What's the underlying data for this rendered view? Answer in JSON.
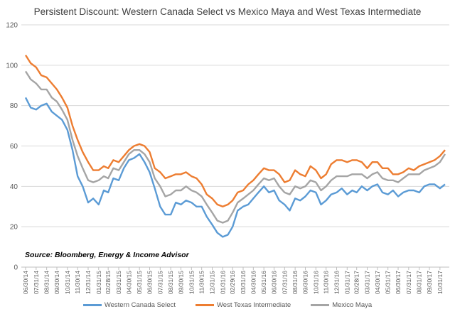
{
  "chart_data": {
    "type": "line",
    "title": "Persistent Discount: Western Canada Select vs Mexico Maya and West Texas Intermediate",
    "note": "Source: Bloomberg, Energy & Income Advisor",
    "xlabel": "",
    "ylabel": "",
    "ylim": [
      0,
      120
    ],
    "yticks": [
      0,
      20,
      40,
      60,
      80,
      100,
      120
    ],
    "grid": true,
    "legend_position": "bottom",
    "x_tick_labels": [
      "06/30/14",
      "07/31/14",
      "08/31/14",
      "09/30/14",
      "10/31/14",
      "11/30/14",
      "12/31/14",
      "01/31/15",
      "02/28/15",
      "03/31/15",
      "04/30/15",
      "05/31/15",
      "06/30/15",
      "07/31/15",
      "08/31/15",
      "09/30/15",
      "10/31/15",
      "11/30/15",
      "12/31/15",
      "01/31/16",
      "02/29/16",
      "03/31/16",
      "04/30/16",
      "05/31/16",
      "06/30/16",
      "07/31/16",
      "08/31/16",
      "09/30/16",
      "10/31/16",
      "11/30/16",
      "12/31/16",
      "01/31/17",
      "02/28/17",
      "03/31/17",
      "04/30/17",
      "05/31/17",
      "06/30/17",
      "07/31/17",
      "08/31/17",
      "09/30/17",
      "10/31/17"
    ],
    "x": [
      "2014-06-30",
      "2014-07-15",
      "2014-07-31",
      "2014-08-15",
      "2014-08-31",
      "2014-09-15",
      "2014-09-30",
      "2014-10-15",
      "2014-10-31",
      "2014-11-15",
      "2014-11-30",
      "2014-12-15",
      "2014-12-31",
      "2015-01-15",
      "2015-01-31",
      "2015-02-15",
      "2015-02-28",
      "2015-03-15",
      "2015-03-31",
      "2015-04-15",
      "2015-04-30",
      "2015-05-15",
      "2015-05-31",
      "2015-06-15",
      "2015-06-30",
      "2015-07-15",
      "2015-07-31",
      "2015-08-15",
      "2015-08-31",
      "2015-09-15",
      "2015-09-30",
      "2015-10-15",
      "2015-10-31",
      "2015-11-15",
      "2015-11-30",
      "2015-12-15",
      "2015-12-31",
      "2016-01-15",
      "2016-01-31",
      "2016-02-15",
      "2016-02-29",
      "2016-03-15",
      "2016-03-31",
      "2016-04-15",
      "2016-04-30",
      "2016-05-15",
      "2016-05-31",
      "2016-06-15",
      "2016-06-30",
      "2016-07-15",
      "2016-07-31",
      "2016-08-15",
      "2016-08-31",
      "2016-09-15",
      "2016-09-30",
      "2016-10-15",
      "2016-10-31",
      "2016-11-15",
      "2016-11-30",
      "2016-12-15",
      "2016-12-31",
      "2017-01-15",
      "2017-01-31",
      "2017-02-15",
      "2017-02-28",
      "2017-03-15",
      "2017-03-31",
      "2017-04-15",
      "2017-04-30",
      "2017-05-15",
      "2017-05-31",
      "2017-06-15",
      "2017-06-30",
      "2017-07-15",
      "2017-07-31",
      "2017-08-15",
      "2017-08-31",
      "2017-09-15",
      "2017-09-30",
      "2017-10-15",
      "2017-10-31",
      "2017-11-15"
    ],
    "series": [
      {
        "name": "Western Canada Select",
        "color": "#5b9bd5",
        "values": [
          84,
          79,
          78,
          80,
          81,
          77,
          75,
          73,
          68,
          58,
          45,
          40,
          32,
          34,
          31,
          38,
          37,
          44,
          43,
          49,
          53,
          54,
          56,
          52,
          47,
          39,
          30,
          26,
          26,
          32,
          31,
          33,
          32,
          30,
          30,
          25,
          21,
          17,
          15,
          16,
          20,
          28,
          30,
          31,
          34,
          37,
          40,
          37,
          38,
          33,
          31,
          28,
          34,
          33,
          35,
          38,
          37,
          31,
          33,
          36,
          37,
          39,
          36,
          38,
          37,
          40,
          38,
          40,
          41,
          37,
          36,
          38,
          35,
          37,
          38,
          38,
          37,
          40,
          41,
          41,
          39,
          41
        ]
      },
      {
        "name": "West Texas Intermediate",
        "color": "#ed7d31",
        "values": [
          105,
          101,
          99,
          95,
          94,
          91,
          88,
          84,
          79,
          70,
          63,
          57,
          52,
          48,
          48,
          50,
          49,
          53,
          52,
          55,
          58,
          60,
          61,
          60,
          57,
          49,
          47,
          44,
          45,
          46,
          46,
          47,
          45,
          44,
          41,
          36,
          34,
          31,
          30,
          31,
          33,
          37,
          38,
          41,
          43,
          46,
          49,
          48,
          48,
          46,
          42,
          43,
          48,
          46,
          45,
          50,
          48,
          44,
          46,
          51,
          53,
          53,
          52,
          53,
          53,
          52,
          49,
          52,
          52,
          49,
          49,
          46,
          46,
          47,
          49,
          48,
          50,
          51,
          52,
          53,
          55,
          58
        ]
      },
      {
        "name": "Mexico Maya",
        "color": "#a5a5a5",
        "values": [
          97,
          93,
          91,
          88,
          88,
          84,
          82,
          78,
          73,
          63,
          55,
          49,
          43,
          42,
          43,
          45,
          44,
          49,
          48,
          52,
          56,
          58,
          58,
          56,
          52,
          44,
          40,
          35,
          36,
          38,
          38,
          40,
          38,
          37,
          35,
          31,
          27,
          23,
          22,
          23,
          27,
          32,
          34,
          36,
          38,
          41,
          44,
          43,
          44,
          40,
          37,
          36,
          40,
          39,
          40,
          43,
          42,
          38,
          40,
          43,
          45,
          45,
          45,
          46,
          46,
          46,
          44,
          46,
          47,
          44,
          43,
          43,
          42,
          44,
          46,
          46,
          46,
          48,
          49,
          50,
          52,
          56
        ]
      }
    ]
  }
}
